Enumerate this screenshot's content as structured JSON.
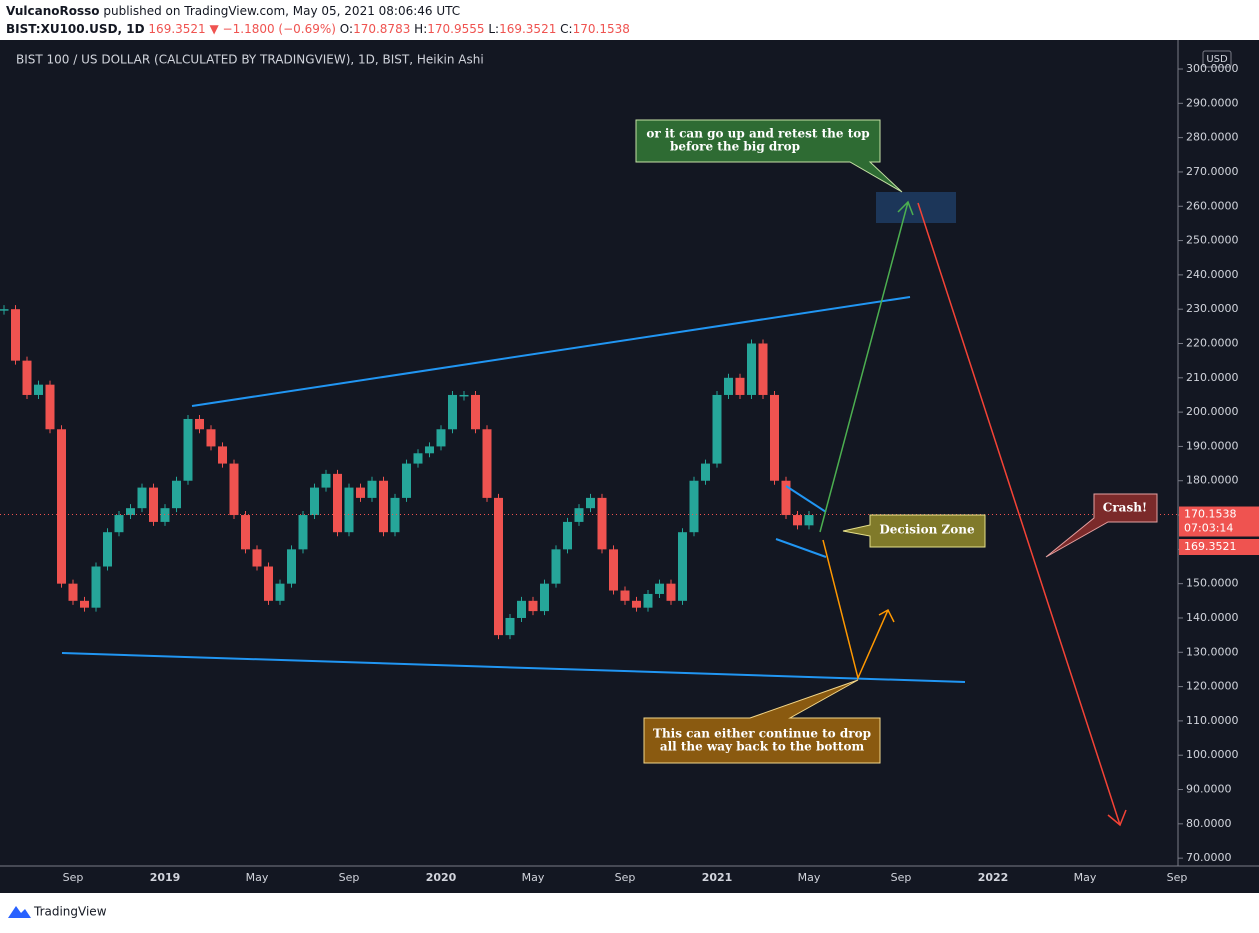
{
  "header": {
    "publisher": "VulcanoRosso",
    "published": "published on TradingView.com, May 05, 2021 08:06:46 UTC",
    "symbol": "BIST:XU100.USD, 1D",
    "last": "169.3521",
    "change": "▼ −1.1800 (−0.69%)",
    "ohlc": [
      {
        "label": "O:",
        "value": "170.8783"
      },
      {
        "label": "H:",
        "value": "170.9555"
      },
      {
        "label": "L:",
        "value": "169.3521"
      },
      {
        "label": "C:",
        "value": "170.1538"
      }
    ]
  },
  "chart_data": {
    "type": "candlestick",
    "title": "BIST 100 / US DOLLAR (CALCULATED BY TRADINGVIEW), 1D, BIST, Heikin Ashi",
    "currency": "USD",
    "categories": [
      null,
      null,
      null,
      null,
      null,
      null,
      "Sep",
      null,
      null,
      null,
      null,
      null,
      null,
      null,
      "2019",
      null,
      null,
      null,
      null,
      null,
      null,
      null,
      "May",
      null,
      null,
      null,
      null,
      null,
      null,
      null,
      "Sep",
      null,
      null,
      null,
      null,
      null,
      null,
      null,
      "2020",
      null,
      null,
      null,
      null,
      null,
      null,
      null,
      "May",
      null,
      null,
      null,
      null,
      null,
      null,
      null,
      "Sep",
      null,
      null,
      null,
      null,
      null,
      null,
      null,
      "2021",
      null,
      null,
      null,
      null,
      null,
      null,
      null,
      "May",
      null,
      null,
      null,
      null,
      null,
      null,
      null,
      "Sep",
      null,
      null,
      null,
      null,
      null,
      null,
      null,
      "2022",
      null,
      null,
      null,
      null,
      null,
      null,
      null,
      "May",
      null,
      null,
      null,
      null,
      null,
      null,
      null,
      "Sep"
    ],
    "values": [
      230,
      215,
      205,
      208,
      195,
      150,
      145,
      143,
      155,
      165,
      170,
      172,
      178,
      168,
      172,
      180,
      198,
      195,
      190,
      185,
      170,
      160,
      155,
      145,
      150,
      160,
      170,
      178,
      182,
      165,
      178,
      175,
      180,
      165,
      175,
      185,
      188,
      190,
      195,
      205,
      205,
      195,
      175,
      135,
      140,
      145,
      142,
      150,
      160,
      168,
      172,
      175,
      160,
      148,
      145,
      143,
      147,
      150,
      145,
      165,
      180,
      185,
      205,
      210,
      205,
      220,
      205,
      180,
      170,
      167,
      170,
      null,
      null,
      null,
      null,
      null,
      null,
      null,
      null,
      null,
      null,
      null,
      null,
      null,
      null,
      null,
      null,
      null,
      null,
      null,
      null,
      null,
      null,
      null,
      null,
      null,
      null,
      null,
      null,
      null,
      null,
      null,
      null
    ],
    "up_color": "#26a69a",
    "down_color": "#ef5350",
    "ylim": [
      68,
      307
    ],
    "yticks": [
      {
        "value": 70,
        "label": "70.0000"
      },
      {
        "value": 80,
        "label": "80.0000"
      },
      {
        "value": 90,
        "label": "90.0000"
      },
      {
        "value": 100,
        "label": "100.0000"
      },
      {
        "value": 110,
        "label": "110.0000"
      },
      {
        "value": 120,
        "label": "120.0000"
      },
      {
        "value": 130,
        "label": "130.0000"
      },
      {
        "value": 140,
        "label": "140.0000"
      },
      {
        "value": 150,
        "label": "150.0000"
      },
      {
        "value": 160,
        "label": "160.0000"
      },
      {
        "value": 170,
        "label": "170.0000"
      },
      {
        "value": 180,
        "label": "180.0000"
      },
      {
        "value": 190,
        "label": "190.0000"
      },
      {
        "value": 200,
        "label": "200.0000"
      },
      {
        "value": 210,
        "label": "210.0000"
      },
      {
        "value": 220,
        "label": "220.0000"
      },
      {
        "value": 230,
        "label": "230.0000"
      },
      {
        "value": 240,
        "label": "240.0000"
      },
      {
        "value": 250,
        "label": "250.0000"
      },
      {
        "value": 260,
        "label": "260.0000"
      },
      {
        "value": 270,
        "label": "270.0000"
      },
      {
        "value": 280,
        "label": "280.0000"
      },
      {
        "value": 290,
        "label": "290.0000"
      },
      {
        "value": 300,
        "label": "300.0000"
      }
    ],
    "last_price": {
      "value": 170.1538,
      "label": "170.1538"
    },
    "countdown": "07:03:14",
    "low_label": "169.3521",
    "grid": false
  },
  "annotations": {
    "top": [
      "or it can go up and retest the top",
      "before the big drop"
    ],
    "decision": "Decision Zone",
    "crash": "Crash!",
    "bottom": [
      "This can either continue to drop",
      "all the way back to the bottom"
    ]
  },
  "footer": "TradingView"
}
